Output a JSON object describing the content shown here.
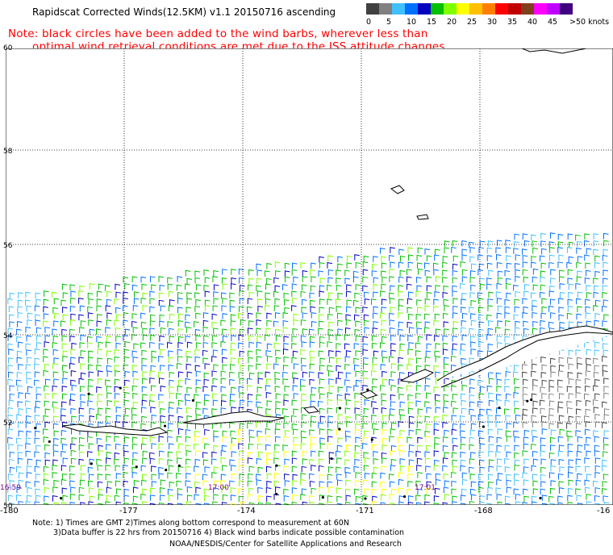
{
  "title": "Rapidscat Corrected Winds(12.5KM) v1.1 20150716 ascending",
  "note_line1": "Note: black circles have been added to the wind barbs, wherever less than",
  "note_line2": "optimal wind retrieval conditions are met due to the ISS attitude changes.",
  "color_scale": {
    "unit": ">50 knots",
    "labels": [
      "0",
      "5",
      "10",
      "15",
      "20",
      "25",
      "30",
      "35",
      "40",
      "45"
    ],
    "colors": [
      "#404040",
      "#808080",
      "#40c0ff",
      "#0070ff",
      "#0000c0",
      "#00c000",
      "#80ff00",
      "#ffff00",
      "#ffc000",
      "#ff8000",
      "#ff0000",
      "#c00000",
      "#804020",
      "#ff00ff",
      "#c000ff",
      "#400080"
    ]
  },
  "lat_labels": [
    "60",
    "58",
    "56",
    "54",
    "52",
    "50"
  ],
  "lon_labels": [
    "-180",
    "-177",
    "-174",
    "-171",
    "-168",
    "-16"
  ],
  "time_labels": [
    "16:59",
    "17:00",
    "17:01"
  ],
  "footer_line1": "Note: 1) Times are GMT 2)Times along bottom correspond to measurement at 60N",
  "footer_line2": "3)Data buffer is 22 hrs from 20150716 4) Black wind barbs indicate possible contamination",
  "footer_credit": "NOAA/NESDIS/Center for Satellite Applications and Research"
}
